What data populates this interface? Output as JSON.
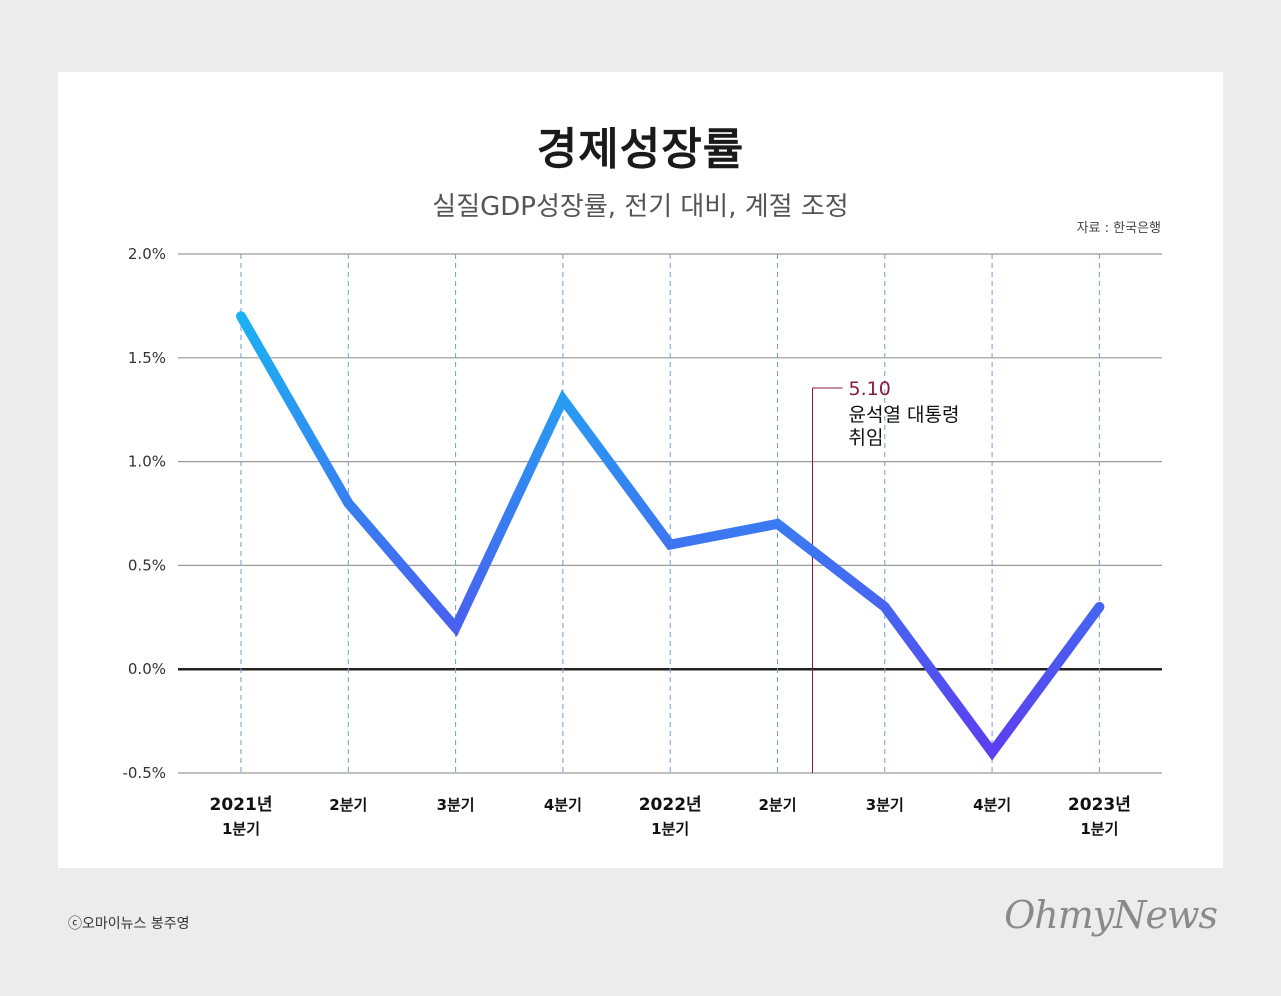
{
  "chart_data": {
    "type": "line",
    "title": "경제성장률",
    "subtitle": "실질GDP성장률, 전기 대비, 계절 조정",
    "source": "자료 : 한국은행",
    "categories": [
      {
        "line1": "2021년",
        "line2": "1분기"
      },
      {
        "line1": "2분기",
        "line2": ""
      },
      {
        "line1": "3분기",
        "line2": ""
      },
      {
        "line1": "4분기",
        "line2": ""
      },
      {
        "line1": "2022년",
        "line2": "1분기"
      },
      {
        "line1": "2분기",
        "line2": ""
      },
      {
        "line1": "3분기",
        "line2": ""
      },
      {
        "line1": "4분기",
        "line2": ""
      },
      {
        "line1": "2023년",
        "line2": "1분기"
      }
    ],
    "values": [
      1.7,
      0.8,
      0.2,
      1.3,
      0.6,
      0.7,
      0.3,
      -0.4,
      0.3
    ],
    "ylim": [
      -0.5,
      2.0
    ],
    "yticks": [
      "2.0%",
      "1.5%",
      "1.0%",
      "0.5%",
      "0.0%",
      "-0.5%"
    ],
    "ytick_values": [
      2.0,
      1.5,
      1.0,
      0.5,
      0.0,
      -0.5
    ],
    "annotation": {
      "date": "5.10",
      "text_line1": "윤석열 대통령",
      "text_line2": "취임",
      "after_index": 5
    },
    "colors": {
      "line_start": "#19b6f2",
      "line_end": "#5b3ff0",
      "zero_line": "#222222",
      "grid": "#9a9a9a",
      "annotation": "#8a1a3a"
    }
  },
  "footer": {
    "credit": "ⓒ오마이뉴스 봉주영",
    "brand": "OhmyNews"
  }
}
